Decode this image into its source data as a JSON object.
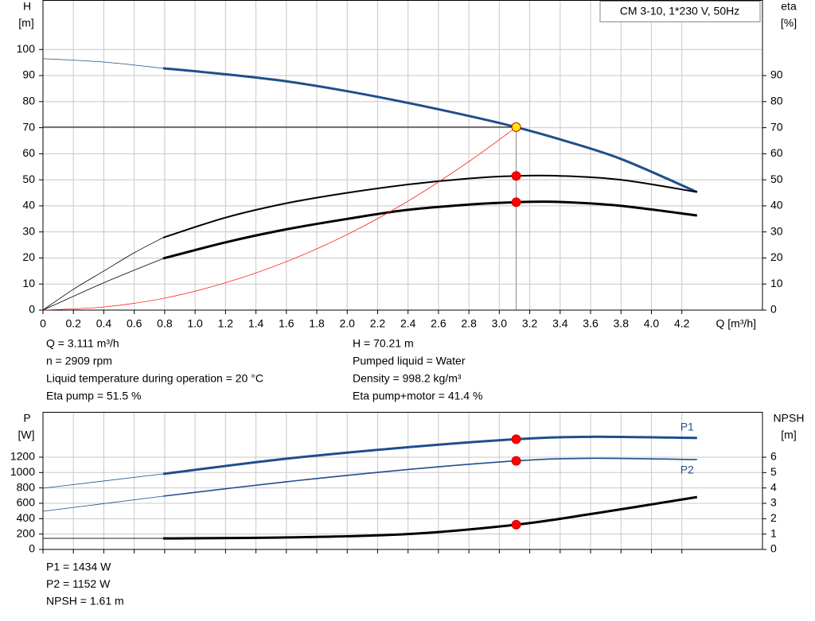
{
  "chart_data": [
    {
      "type": "line",
      "title": "CM 3-10, 1*230 V, 50Hz",
      "y_label": "H",
      "y_unit": "[m]",
      "y2_label": "eta",
      "y2_unit": "[%]",
      "x_label": "Q [m³/h]",
      "xlim": [
        0,
        4.73
      ],
      "xticks": [
        0,
        0.2,
        0.4,
        0.6,
        0.8,
        {
          "value": 1,
          "label": "1.0"
        },
        1.2,
        1.4,
        1.6,
        1.8,
        {
          "value": 2,
          "label": "2.0"
        },
        2.2,
        2.4,
        2.6,
        2.8,
        {
          "value": 3,
          "label": "3.0"
        },
        3.2,
        3.4,
        3.6,
        3.8,
        {
          "value": 4,
          "label": "4.0"
        },
        4.2
      ],
      "ylim": [
        0,
        119
      ],
      "yticks": [
        0,
        10,
        20,
        30,
        40,
        50,
        60,
        70,
        80,
        90,
        100
      ],
      "y2lim": [
        0,
        119
      ],
      "y2ticks": [
        0,
        10,
        20,
        30,
        40,
        50,
        60,
        70,
        80,
        90
      ],
      "grid": true,
      "series": [
        {
          "color": "#1f4e8c",
          "width": 0.8,
          "x": [
            0,
            0.4,
            0.79
          ],
          "values": [
            96.5,
            95.2,
            92.8
          ]
        },
        {
          "color": "#1f4e8c",
          "width": 3,
          "x": [
            0.79,
            1.2,
            1.6,
            2.0,
            2.4,
            2.8,
            3.111,
            3.4,
            3.8,
            4.3
          ],
          "values": [
            92.8,
            90.5,
            87.8,
            84,
            79.5,
            74.5,
            70.21,
            65.5,
            58,
            45.3
          ]
        },
        {
          "color": "#000000",
          "width": 0.8,
          "axis": "y2",
          "x": [
            0,
            0.2,
            0.4,
            0.6,
            0.79
          ],
          "values": [
            0,
            8,
            15,
            22,
            27.8
          ]
        },
        {
          "color": "#000000",
          "width": 2,
          "axis": "y2",
          "x": [
            0.79,
            1.2,
            1.6,
            2.0,
            2.4,
            2.8,
            3.111,
            3.4,
            3.8,
            4.3
          ],
          "values": [
            27.8,
            35.5,
            41,
            45,
            48.2,
            50.5,
            51.5,
            51.5,
            50,
            45.3
          ]
        },
        {
          "color": "#000000",
          "width": 0.8,
          "axis": "y2",
          "x": [
            0,
            0.4,
            0.79
          ],
          "values": [
            0,
            10.5,
            19.8
          ]
        },
        {
          "color": "#000000",
          "width": 3,
          "axis": "y2",
          "x": [
            0.79,
            1.2,
            1.6,
            2.0,
            2.4,
            2.8,
            3.111,
            3.4,
            3.8,
            4.3
          ],
          "values": [
            19.8,
            26,
            31,
            35,
            38.5,
            40.5,
            41.4,
            41.5,
            40,
            36.3
          ]
        },
        {
          "color": "#ff0000",
          "width": 0.7,
          "x": [
            0,
            0.4,
            0.8,
            1.2,
            1.6,
            2.0,
            2.4,
            2.8,
            3.111
          ],
          "values": [
            0,
            1.2,
            4.6,
            10.5,
            18.6,
            29,
            41.8,
            57,
            70.21
          ]
        }
      ],
      "markers": [
        {
          "x": 3.111,
          "value": 70.21,
          "color": "#ffee00",
          "guides": true
        },
        {
          "x": 3.111,
          "value": 51.5,
          "color": "#ff0000",
          "axis": "y2"
        },
        {
          "x": 3.111,
          "value": 41.4,
          "color": "#ff0000",
          "axis": "y2"
        }
      ],
      "notes_left": [
        "Q = 3.111 m³/h",
        "n = 2909 rpm",
        "Liquid temperature during operation = 20 °C",
        "Eta pump = 51.5 %"
      ],
      "notes_right": [
        "H = 70.21 m",
        "Pumped liquid = Water",
        "Density = 998.2 kg/m³",
        "Eta pump+motor = 41.4 %"
      ]
    },
    {
      "type": "line",
      "y_label": "P",
      "y_unit": "[W]",
      "y2_label": "NPSH",
      "y2_unit": "[m]",
      "xlim": [
        0,
        4.73
      ],
      "xticks": [
        0,
        0.2,
        0.4,
        0.6,
        0.8,
        1,
        1.2,
        1.4,
        1.6,
        1.8,
        2,
        2.2,
        2.4,
        2.6,
        2.8,
        3,
        3.2,
        3.4,
        3.6,
        3.8,
        4,
        4.2
      ],
      "xtick_labels": false,
      "ylim": [
        0,
        1789
      ],
      "yticks": [
        0,
        200,
        400,
        600,
        800,
        1000,
        1200
      ],
      "y2lim": [
        0,
        8.95
      ],
      "y2ticks": [
        0,
        1,
        2,
        3,
        4,
        5,
        6
      ],
      "grid": true,
      "series": [
        {
          "color": "#1f4e8c",
          "width": 0.8,
          "x": [
            0,
            0.79
          ],
          "values": [
            796,
            982
          ]
        },
        {
          "name": "P1",
          "label_pos": "above",
          "color": "#1f4e8c",
          "width": 3,
          "x": [
            0.79,
            1.6,
            2.4,
            3.111,
            3.6,
            4.3
          ],
          "values": [
            982,
            1180,
            1330,
            1434,
            1465,
            1450
          ]
        },
        {
          "color": "#1f4e8c",
          "width": 0.8,
          "x": [
            0,
            0.79
          ],
          "values": [
            496,
            693
          ]
        },
        {
          "name": "P2",
          "label_pos": "below",
          "color": "#1f4e8c",
          "width": 1.6,
          "x": [
            0.79,
            1.6,
            2.4,
            3.111,
            3.6,
            4.3
          ],
          "values": [
            693,
            880,
            1040,
            1152,
            1185,
            1169
          ]
        },
        {
          "color": "#000000",
          "width": 0.8,
          "axis": "y2",
          "x": [
            0,
            0.79
          ],
          "values": [
            0.72,
            0.72
          ]
        },
        {
          "color": "#000000",
          "width": 3,
          "axis": "y2",
          "x": [
            0.79,
            1.6,
            2.4,
            3.111,
            3.6,
            4.3
          ],
          "values": [
            0.72,
            0.78,
            1.0,
            1.61,
            2.3,
            3.41
          ]
        }
      ],
      "markers": [
        {
          "x": 3.111,
          "value": 1434,
          "color": "#ff0000"
        },
        {
          "x": 3.111,
          "value": 1152,
          "color": "#ff0000"
        },
        {
          "x": 3.111,
          "value": 1.61,
          "color": "#ff0000",
          "axis": "y2"
        }
      ],
      "notes_left": [
        "P1 = 1434 W",
        "P2 = 1152 W",
        "NPSH = 1.61 m"
      ]
    }
  ]
}
